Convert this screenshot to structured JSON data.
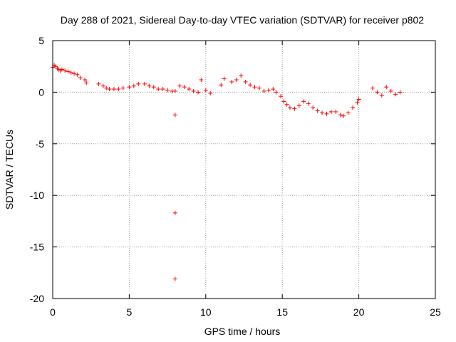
{
  "chart_data": {
    "type": "scatter",
    "title": "Day 288 of 2021, Sidereal Day-to-day VTEC variation (SDTVAR) for receiver p802",
    "xlabel": "GPS time / hours",
    "ylabel": "SDTVAR / TECUs",
    "xlim": [
      0,
      25
    ],
    "ylim": [
      -20,
      5
    ],
    "xticks": [
      0,
      5,
      10,
      15,
      20,
      25
    ],
    "xtick_labels": [
      "0",
      "5",
      "10",
      "15",
      "20",
      "25"
    ],
    "yticks": [
      5,
      0,
      -5,
      -10,
      -15,
      -20
    ],
    "ytick_labels": [
      "5",
      "0",
      "-5",
      "-10",
      "-15",
      "-20"
    ],
    "grid": true,
    "marker_color": "#ff0000",
    "marker": "plus",
    "series": [
      {
        "name": "SDTVAR",
        "x": [
          0.0,
          0.1,
          0.2,
          0.3,
          0.4,
          0.5,
          0.6,
          0.8,
          1.0,
          1.2,
          1.4,
          1.6,
          1.8,
          2.1,
          2.2,
          3.0,
          3.3,
          3.5,
          3.7,
          4.0,
          4.3,
          4.6,
          5.0,
          5.3,
          5.6,
          6.0,
          6.3,
          6.6,
          6.9,
          7.2,
          7.5,
          7.8,
          8.0,
          8.3,
          8.6,
          8.9,
          9.2,
          9.5,
          9.7,
          10.0,
          10.3,
          11.0,
          11.2,
          11.7,
          12.0,
          12.3,
          12.6,
          12.9,
          13.2,
          13.5,
          13.8,
          14.1,
          14.4,
          14.6,
          14.9,
          15.1,
          15.3,
          15.5,
          15.8,
          16.1,
          16.4,
          16.7,
          17.0,
          17.3,
          17.6,
          17.9,
          18.2,
          18.5,
          18.8,
          19.0,
          19.3,
          19.6,
          19.9,
          20.0,
          20.9,
          21.2,
          21.5,
          21.8,
          22.1,
          22.4,
          22.7,
          8.0,
          8.0,
          8.0
        ],
        "y": [
          2.4,
          2.6,
          2.5,
          2.3,
          2.2,
          2.1,
          2.2,
          2.1,
          2.0,
          1.9,
          1.8,
          1.7,
          1.4,
          1.2,
          0.9,
          0.8,
          0.6,
          0.4,
          0.3,
          0.3,
          0.3,
          0.4,
          0.5,
          0.6,
          0.8,
          0.8,
          0.6,
          0.5,
          0.3,
          0.3,
          0.2,
          0.1,
          0.1,
          0.6,
          0.5,
          0.3,
          0.1,
          0.0,
          1.2,
          0.2,
          -0.1,
          0.7,
          1.3,
          1.0,
          1.2,
          1.6,
          1.0,
          0.7,
          0.5,
          0.4,
          0.1,
          0.2,
          0.3,
          0.0,
          -0.4,
          -0.9,
          -1.2,
          -1.5,
          -1.6,
          -1.3,
          -0.9,
          -1.1,
          -1.5,
          -1.8,
          -2.0,
          -2.1,
          -1.9,
          -1.9,
          -2.2,
          -2.3,
          -2.0,
          -1.5,
          -1.0,
          -0.7,
          0.4,
          0.0,
          -0.3,
          0.5,
          0.1,
          -0.2,
          0.0,
          -2.2,
          -11.7,
          -18.1
        ]
      }
    ]
  }
}
